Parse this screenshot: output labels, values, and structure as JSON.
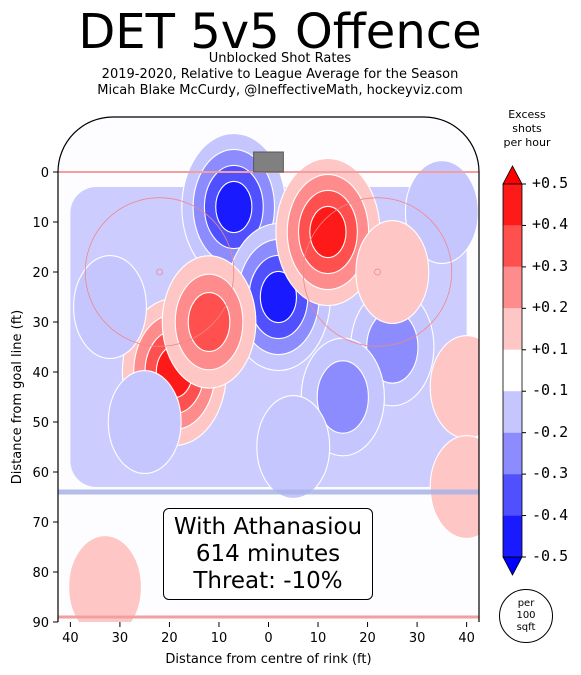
{
  "header": {
    "title": "DET 5v5 Offence",
    "subtitle1": "Unblocked Shot Rates",
    "subtitle2": "2019-2020, Relative to League Average for the Season",
    "subtitle3": "Micah Blake McCurdy, @IneffectiveMath, hockeyviz.com"
  },
  "annotation": {
    "line1": "With Athanasiou",
    "line2": "614 minutes",
    "line3": "Threat: -10%"
  },
  "colorbar": {
    "title_lines": [
      "Excess",
      "shots",
      "per hour"
    ],
    "tick_labels": [
      "+0.5",
      "+0.4",
      "+0.3",
      "+0.2",
      "+0.1",
      "-0.1",
      "-0.2",
      "-0.3",
      "-0.4",
      "-0.5"
    ],
    "colors": [
      "#ff1a1a",
      "#ff5050",
      "#ff8c8c",
      "#ffc6c6",
      "#ffffff",
      "#c6c6ff",
      "#8c8cff",
      "#5050ff",
      "#1a1aff"
    ],
    "end_high_color": "#ff0000",
    "end_low_color": "#0000ff"
  },
  "area_legend": {
    "lines": [
      "per",
      "100",
      "sqft"
    ]
  },
  "chart_data": {
    "type": "heatmap",
    "xlabel": "Distance from centre of rink (ft)",
    "ylabel": "Distance from goal line (ft)",
    "xlim": [
      -42.5,
      42.5
    ],
    "ylim": [
      90,
      -11
    ],
    "x_ticks": [
      -40,
      -30,
      -20,
      -10,
      0,
      10,
      20,
      30,
      40
    ],
    "x_tick_labels": [
      "40",
      "30",
      "20",
      "10",
      "0",
      "10",
      "20",
      "30",
      "40"
    ],
    "y_ticks": [
      0,
      10,
      20,
      30,
      40,
      50,
      60,
      70,
      80,
      90
    ],
    "y_tick_labels": [
      "0",
      "10",
      "20",
      "30",
      "40",
      "50",
      "60",
      "70",
      "80",
      "90"
    ],
    "units": "excess unblocked shots per hour per 100 sqft",
    "blobs": [
      {
        "x": -7,
        "y": 7,
        "level": -0.5
      },
      {
        "x": 2,
        "y": 25,
        "level": -0.5
      },
      {
        "x": 12,
        "y": 12,
        "level": 0.5
      },
      {
        "x": -19,
        "y": 40,
        "level": 0.5
      },
      {
        "x": -12,
        "y": 30,
        "level": 0.4
      },
      {
        "x": 25,
        "y": 35,
        "level": -0.3
      },
      {
        "x": -25,
        "y": 50,
        "level": -0.2
      },
      {
        "x": 15,
        "y": 45,
        "level": -0.3
      },
      {
        "x": 40,
        "y": 43,
        "level": 0.2
      },
      {
        "x": -32,
        "y": 27,
        "level": -0.2
      },
      {
        "x": 35,
        "y": 8,
        "level": -0.2
      },
      {
        "x": 25,
        "y": 20,
        "level": 0.2
      },
      {
        "x": -33,
        "y": 83,
        "level": 0.2
      },
      {
        "x": 40,
        "y": 63,
        "level": 0.2
      },
      {
        "x": 5,
        "y": 55,
        "level": -0.2
      }
    ]
  }
}
